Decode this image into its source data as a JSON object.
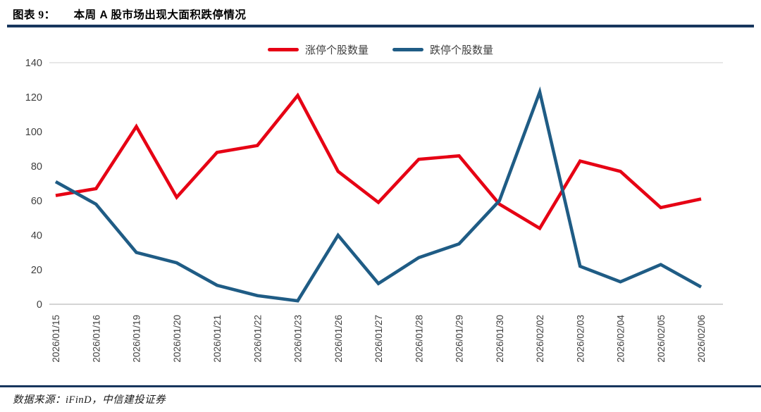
{
  "header": {
    "figure_label": "图表 9：",
    "title": "本周 A 股市场出现大面积跌停情况"
  },
  "footer": {
    "source": "数据来源：iFinD，中信建投证券"
  },
  "colors": {
    "accent_rule": "#17365d",
    "red_series": "#e60014",
    "blue_series": "#1f5c85",
    "gridline": "#d9d9d9",
    "axis_line": "#c6c6c6",
    "tick_text": "#404040"
  },
  "chart_data": {
    "type": "line",
    "title": "本周 A 股市场出现大面积跌停情况",
    "categories": [
      "2026/01/15",
      "2026/01/16",
      "2026/01/19",
      "2026/01/20",
      "2026/01/21",
      "2026/01/22",
      "2026/01/23",
      "2026/01/26",
      "2026/01/27",
      "2026/01/28",
      "2026/01/29",
      "2026/01/30",
      "2026/02/02",
      "2026/02/03",
      "2026/02/04",
      "2026/02/05",
      "2026/02/06"
    ],
    "series": [
      {
        "name": "涨停个股数量",
        "color": "#e60014",
        "values": [
          63,
          67,
          103,
          62,
          88,
          92,
          121,
          77,
          59,
          84,
          86,
          58,
          44,
          83,
          77,
          56,
          61
        ]
      },
      {
        "name": "跌停个股数量",
        "color": "#1f5c85",
        "values": [
          71,
          58,
          30,
          24,
          11,
          5,
          2,
          40,
          12,
          27,
          35,
          60,
          123,
          22,
          13,
          23,
          10
        ]
      }
    ],
    "xlabel": "",
    "ylabel": "",
    "ylim": [
      0,
      140
    ],
    "ytick_step": 20,
    "grid": "top-gridline-only",
    "legend_position": "top-center"
  }
}
